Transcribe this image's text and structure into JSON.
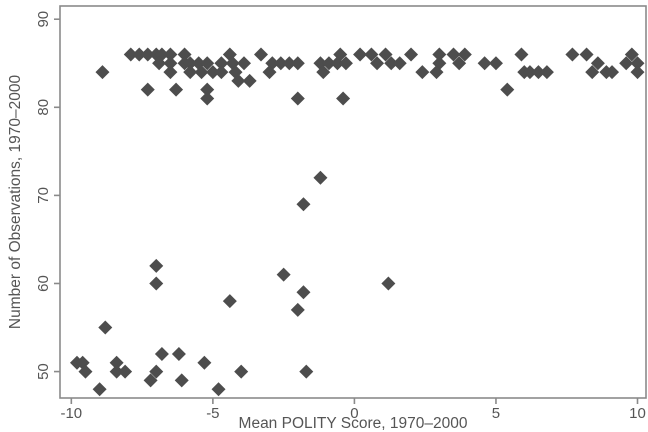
{
  "chart_data": {
    "type": "scatter",
    "title": "",
    "xlabel": "Mean POLITY Score, 1970–2000",
    "ylabel": "Number of Observations, 1970–2000",
    "xlim": [
      -10.4,
      10.3
    ],
    "ylim": [
      47,
      91.5
    ],
    "xticks": [
      -10,
      -5,
      0,
      5,
      10
    ],
    "yticks": [
      50,
      60,
      70,
      80,
      90
    ],
    "xtick_labels": [
      "-10",
      "-5",
      "0",
      "5",
      "10"
    ],
    "ytick_labels": [
      "50",
      "60",
      "70",
      "80",
      "90"
    ],
    "grid": false,
    "legend": "none",
    "marker": "diamond",
    "marker_color": "#4d4d4d",
    "series": [
      {
        "points": [
          [
            -9.8,
            51
          ],
          [
            -9.6,
            51
          ],
          [
            -9.5,
            50
          ],
          [
            -8.8,
            55
          ],
          [
            -8.4,
            51
          ],
          [
            -8.4,
            50
          ],
          [
            -8.1,
            50
          ],
          [
            -9.0,
            48
          ],
          [
            -7.2,
            49
          ],
          [
            -7.0,
            50
          ],
          [
            -6.8,
            52
          ],
          [
            -6.2,
            52
          ],
          [
            -6.1,
            49
          ],
          [
            -5.3,
            51
          ],
          [
            -4.8,
            48
          ],
          [
            -4.4,
            58
          ],
          [
            -4.0,
            50
          ],
          [
            -7.0,
            62
          ],
          [
            -7.0,
            60
          ],
          [
            -2.5,
            61
          ],
          [
            -2.0,
            57
          ],
          [
            -1.8,
            59
          ],
          [
            -1.7,
            50
          ],
          [
            -1.8,
            69
          ],
          [
            -1.2,
            72
          ],
          [
            1.2,
            60
          ],
          [
            -8.9,
            84
          ],
          [
            -7.3,
            82
          ],
          [
            -6.3,
            82
          ],
          [
            -5.2,
            82
          ],
          [
            -5.2,
            81
          ],
          [
            -2.0,
            81
          ],
          [
            -0.4,
            81
          ],
          [
            5.4,
            82
          ],
          [
            -7.9,
            86
          ],
          [
            -7.6,
            86
          ],
          [
            -7.3,
            86
          ],
          [
            -7.0,
            86
          ],
          [
            -6.8,
            86
          ],
          [
            -6.5,
            86
          ],
          [
            -6.0,
            86
          ],
          [
            -4.4,
            86
          ],
          [
            -3.3,
            86
          ],
          [
            -0.5,
            86
          ],
          [
            0.2,
            86
          ],
          [
            0.6,
            86
          ],
          [
            1.1,
            86
          ],
          [
            2.0,
            86
          ],
          [
            3.0,
            86
          ],
          [
            3.5,
            86
          ],
          [
            3.9,
            86
          ],
          [
            5.9,
            86
          ],
          [
            7.7,
            86
          ],
          [
            8.2,
            86
          ],
          [
            9.8,
            86
          ],
          [
            -6.9,
            85
          ],
          [
            -6.5,
            85
          ],
          [
            -6.0,
            85
          ],
          [
            -5.8,
            85
          ],
          [
            -5.5,
            85
          ],
          [
            -5.2,
            85
          ],
          [
            -4.7,
            85
          ],
          [
            -4.3,
            85
          ],
          [
            -3.9,
            85
          ],
          [
            -2.9,
            85
          ],
          [
            -2.6,
            85
          ],
          [
            -2.3,
            85
          ],
          [
            -2.0,
            85
          ],
          [
            -1.2,
            85
          ],
          [
            -0.9,
            85
          ],
          [
            -0.6,
            85
          ],
          [
            -0.3,
            85
          ],
          [
            0.8,
            85
          ],
          [
            1.3,
            85
          ],
          [
            1.6,
            85
          ],
          [
            3.0,
            85
          ],
          [
            3.7,
            85
          ],
          [
            4.6,
            85
          ],
          [
            5.0,
            85
          ],
          [
            8.6,
            85
          ],
          [
            9.6,
            85
          ],
          [
            10.0,
            85
          ],
          [
            -6.5,
            84
          ],
          [
            -5.8,
            84
          ],
          [
            -5.0,
            84
          ],
          [
            -4.7,
            84
          ],
          [
            -4.2,
            84
          ],
          [
            -3.0,
            84
          ],
          [
            -1.1,
            84
          ],
          [
            2.4,
            84
          ],
          [
            2.9,
            84
          ],
          [
            6.0,
            84
          ],
          [
            6.2,
            84
          ],
          [
            6.5,
            84
          ],
          [
            6.8,
            84
          ],
          [
            8.4,
            84
          ],
          [
            8.9,
            84
          ],
          [
            9.1,
            84
          ],
          [
            10.0,
            84
          ],
          [
            -5.4,
            84
          ],
          [
            -3.7,
            83
          ],
          [
            -4.1,
            83
          ]
        ]
      }
    ]
  }
}
